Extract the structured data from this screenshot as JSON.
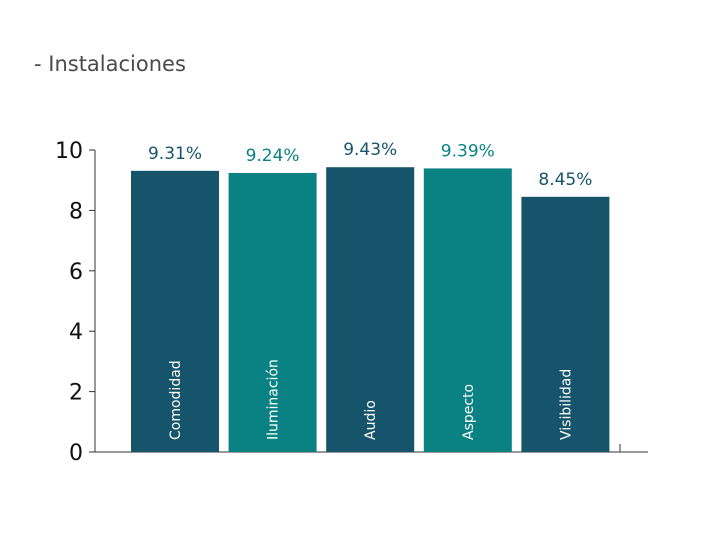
{
  "title": "- Instalaciones",
  "chart_data": {
    "type": "bar",
    "title": "- Instalaciones",
    "xlabel": "",
    "ylabel": "",
    "categories": [
      "Comodidad",
      "Iluminación",
      "Audio",
      "Aspecto",
      "Visibilidad"
    ],
    "values": [
      9.31,
      9.24,
      9.43,
      9.39,
      8.45
    ],
    "value_labels": [
      "9.31%",
      "9.24%",
      "9.43%",
      "9.39%",
      "8.45%"
    ],
    "ylim": [
      0,
      10
    ],
    "yticks": [
      "0",
      "2",
      "4",
      "6",
      "8",
      "10"
    ],
    "grid": false,
    "legend": "none",
    "bar_colors": [
      "#16546b",
      "#0a8284",
      "#16546b",
      "#0a8284",
      "#16546b"
    ],
    "label_colors": [
      "#16546b",
      "#0a8284",
      "#16546b",
      "#0a8284",
      "#16546b"
    ]
  }
}
